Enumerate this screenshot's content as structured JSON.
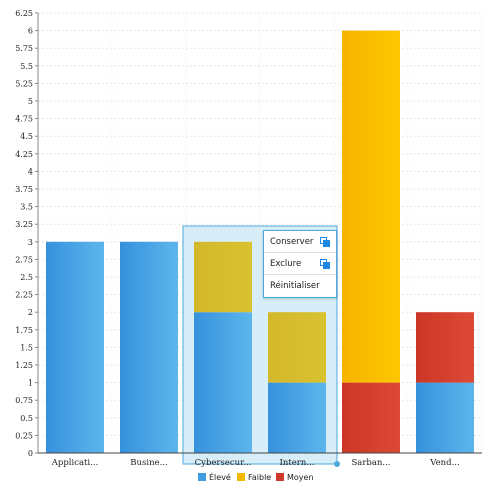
{
  "chart_data": {
    "type": "bar",
    "stacked": true,
    "categories": [
      "Applicati...",
      "Busine...",
      "Cybersecur...",
      "Intern...",
      "Sarban...",
      "Vend..."
    ],
    "series": [
      {
        "name": "Élevé",
        "color": "#3d9be0",
        "values": [
          3,
          3,
          2,
          1,
          0,
          1
        ]
      },
      {
        "name": "Faible",
        "color": "#f5b800",
        "values": [
          0,
          0,
          1,
          1,
          0,
          0
        ]
      },
      {
        "name": "Moyen",
        "color": "#d0382b",
        "values": [
          0,
          0,
          0,
          0,
          1,
          1
        ]
      }
    ],
    "extra_faible_sarban": 5,
    "ylim": [
      0,
      6.25
    ],
    "yticks": [
      "0",
      "0.25",
      "0.5",
      "0.75",
      "1",
      "1.25",
      "1.5",
      "1.75",
      "2",
      "2.25",
      "2.5",
      "2.75",
      "3",
      "3.25",
      "3.5",
      "3.75",
      "4",
      "4.25",
      "4.5",
      "4.75",
      "5",
      "5.25",
      "5.5",
      "5.75",
      "6",
      "6.25"
    ],
    "grid": true,
    "legend_position": "bottom"
  },
  "selection": {
    "from_category": 2,
    "to_category": 3
  },
  "menu": {
    "keep": "Conserver",
    "exclude": "Exclure",
    "reset": "Réinitialiser"
  }
}
